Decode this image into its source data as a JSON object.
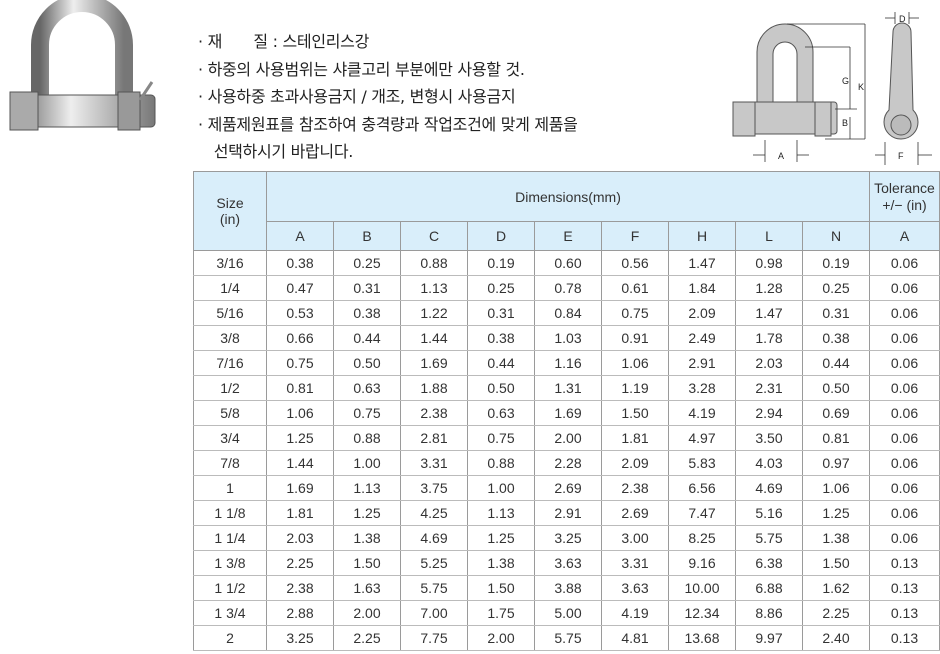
{
  "notes": [
    "· 재　　질 : 스테인리스강",
    "· 하중의 사용범위는 샤클고리 부분에만 사용할 것.",
    "· 사용하중 초과사용금지 / 개조, 변형시 사용금지",
    "· 제품제원표를 참조하여 충격량과 작업조건에 맞게 제품을",
    "　선택하시기 바랍니다."
  ],
  "diagram": {
    "labels": {
      "D": "D",
      "G": "G",
      "K": "K",
      "B": "B",
      "A": "A",
      "F": "F"
    }
  },
  "table": {
    "size_header": "Size\n(in)",
    "size_header_l1": "Size",
    "size_header_l2": "(in)",
    "dims_header": "Dimensions(mm)",
    "tol_header_l1": "Tolerance",
    "tol_header_l2": "+/− (in)",
    "columns": [
      "A",
      "B",
      "C",
      "D",
      "E",
      "F",
      "H",
      "L",
      "N",
      "A"
    ],
    "rows": [
      [
        "3/16",
        "0.38",
        "0.25",
        "0.88",
        "0.19",
        "0.60",
        "0.56",
        "1.47",
        "0.98",
        "0.19",
        "0.06"
      ],
      [
        "1/4",
        "0.47",
        "0.31",
        "1.13",
        "0.25",
        "0.78",
        "0.61",
        "1.84",
        "1.28",
        "0.25",
        "0.06"
      ],
      [
        "5/16",
        "0.53",
        "0.38",
        "1.22",
        "0.31",
        "0.84",
        "0.75",
        "2.09",
        "1.47",
        "0.31",
        "0.06"
      ],
      [
        "3/8",
        "0.66",
        "0.44",
        "1.44",
        "0.38",
        "1.03",
        "0.91",
        "2.49",
        "1.78",
        "0.38",
        "0.06"
      ],
      [
        "7/16",
        "0.75",
        "0.50",
        "1.69",
        "0.44",
        "1.16",
        "1.06",
        "2.91",
        "2.03",
        "0.44",
        "0.06"
      ],
      [
        "1/2",
        "0.81",
        "0.63",
        "1.88",
        "0.50",
        "1.31",
        "1.19",
        "3.28",
        "2.31",
        "0.50",
        "0.06"
      ],
      [
        "5/8",
        "1.06",
        "0.75",
        "2.38",
        "0.63",
        "1.69",
        "1.50",
        "4.19",
        "2.94",
        "0.69",
        "0.06"
      ],
      [
        "3/4",
        "1.25",
        "0.88",
        "2.81",
        "0.75",
        "2.00",
        "1.81",
        "4.97",
        "3.50",
        "0.81",
        "0.06"
      ],
      [
        "7/8",
        "1.44",
        "1.00",
        "3.31",
        "0.88",
        "2.28",
        "2.09",
        "5.83",
        "4.03",
        "0.97",
        "0.06"
      ],
      [
        "1",
        "1.69",
        "1.13",
        "3.75",
        "1.00",
        "2.69",
        "2.38",
        "6.56",
        "4.69",
        "1.06",
        "0.06"
      ],
      [
        "1 1/8",
        "1.81",
        "1.25",
        "4.25",
        "1.13",
        "2.91",
        "2.69",
        "7.47",
        "5.16",
        "1.25",
        "0.06"
      ],
      [
        "1 1/4",
        "2.03",
        "1.38",
        "4.69",
        "1.25",
        "3.25",
        "3.00",
        "8.25",
        "5.75",
        "1.38",
        "0.06"
      ],
      [
        "1 3/8",
        "2.25",
        "1.50",
        "5.25",
        "1.38",
        "3.63",
        "3.31",
        "9.16",
        "6.38",
        "1.50",
        "0.13"
      ],
      [
        "1 1/2",
        "2.38",
        "1.63",
        "5.75",
        "1.50",
        "3.88",
        "3.63",
        "10.00",
        "6.88",
        "1.62",
        "0.13"
      ],
      [
        "1 3/4",
        "2.88",
        "2.00",
        "7.00",
        "1.75",
        "5.00",
        "4.19",
        "12.34",
        "8.86",
        "2.25",
        "0.13"
      ],
      [
        "2",
        "3.25",
        "2.25",
        "7.75",
        "2.00",
        "5.75",
        "4.81",
        "13.68",
        "9.97",
        "2.40",
        "0.13"
      ]
    ]
  },
  "colors": {
    "header_bg": "#d9eefa"
  }
}
